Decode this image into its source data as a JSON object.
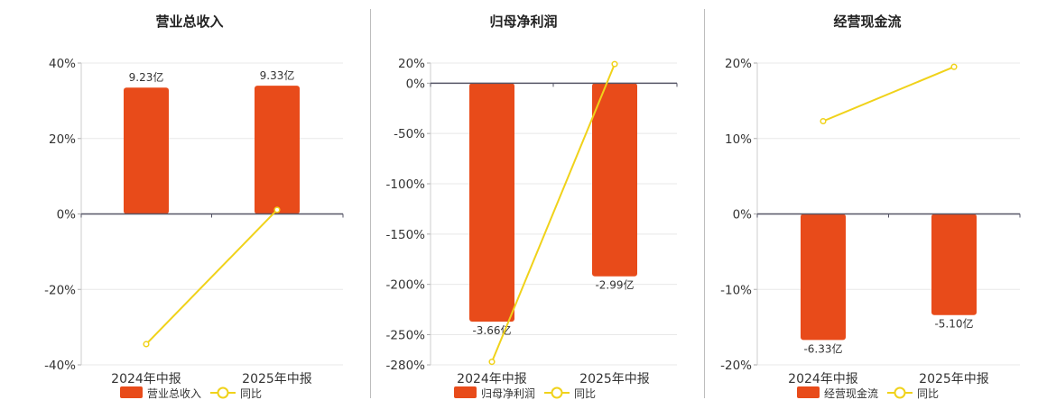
{
  "colors": {
    "bar": "#e84b1a",
    "line": "#f0d21a",
    "grid": "#e8e8e8",
    "axis": "#555566",
    "text": "#333333"
  },
  "chart_data": [
    {
      "type": "bar",
      "title": "营业总收入",
      "categories": [
        "2024年中报",
        "2025年中报"
      ],
      "series": [
        {
          "name": "营业总收入",
          "type": "bar",
          "values": [
            33.5,
            34.0
          ],
          "labels": [
            "9.23亿",
            "9.33亿"
          ]
        },
        {
          "name": "同比",
          "type": "line",
          "values": [
            -34.5,
            1.1
          ]
        }
      ],
      "ylim": [
        -40,
        40
      ],
      "yticks": [
        40,
        20,
        0,
        -20,
        -40
      ],
      "ytick_labels": [
        "40%",
        "20%",
        "0%",
        "-20%",
        "-40%"
      ],
      "legend": "bottom-center",
      "grid": true
    },
    {
      "type": "bar",
      "title": "归母净利润",
      "categories": [
        "2024年中报",
        "2025年中报"
      ],
      "series": [
        {
          "name": "归母净利润",
          "type": "bar",
          "values": [
            -237,
            -192
          ],
          "labels": [
            "-3.66亿",
            "-2.99亿"
          ]
        },
        {
          "name": "同比",
          "type": "line",
          "values": [
            -277,
            19
          ]
        }
      ],
      "ylim": [
        -280,
        20
      ],
      "yticks": [
        20,
        0,
        -50,
        -100,
        -150,
        -200,
        -250,
        -280
      ],
      "ytick_labels": [
        "20%",
        "0%",
        "-50%",
        "-100%",
        "-150%",
        "-200%",
        "-250%",
        "-280%"
      ],
      "legend": "bottom-center",
      "grid": true
    },
    {
      "type": "bar",
      "title": "经营现金流",
      "categories": [
        "2024年中报",
        "2025年中报"
      ],
      "series": [
        {
          "name": "经营现金流",
          "type": "bar",
          "values": [
            -16.7,
            -13.4
          ],
          "labels": [
            "-6.33亿",
            "-5.10亿"
          ]
        },
        {
          "name": "同比",
          "type": "line",
          "values": [
            12.3,
            19.5
          ]
        }
      ],
      "ylim": [
        -20,
        20
      ],
      "yticks": [
        20,
        10,
        0,
        -10,
        -20
      ],
      "ytick_labels": [
        "20%",
        "10%",
        "0%",
        "-10%",
        "-20%"
      ],
      "legend": "bottom-center",
      "grid": true
    }
  ]
}
